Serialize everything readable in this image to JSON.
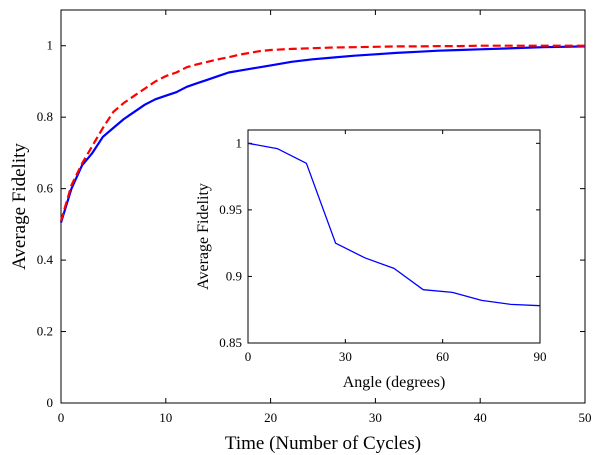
{
  "chart_data": [
    {
      "type": "line",
      "xlabel": "Time (Number of Cycles)",
      "ylabel": "Average Fidelity",
      "xlim": [
        0,
        50
      ],
      "ylim": [
        0,
        1.1
      ],
      "xticks": [
        0,
        10,
        20,
        30,
        40,
        50
      ],
      "yticks": [
        0,
        0.2,
        0.4,
        0.6,
        0.8,
        1
      ],
      "xtick_labels": [
        "0",
        "10",
        "20",
        "30",
        "40",
        "50"
      ],
      "ytick_labels": [
        "0",
        "0.2",
        "0.4",
        "0.6",
        "0.8",
        "1"
      ],
      "grid": false,
      "legend": false,
      "series": [
        {
          "style": "solid",
          "color": "#0000ff",
          "x": [
            0,
            1,
            2,
            3,
            4,
            5,
            6,
            7,
            8,
            9,
            10,
            11,
            12,
            13,
            14,
            15,
            16,
            17,
            18,
            19,
            20,
            22,
            24,
            26,
            28,
            30,
            32,
            34,
            36,
            38,
            40,
            42,
            44,
            46,
            48,
            50
          ],
          "y": [
            0.505,
            0.6,
            0.665,
            0.7,
            0.745,
            0.77,
            0.795,
            0.815,
            0.835,
            0.85,
            0.86,
            0.87,
            0.885,
            0.895,
            0.905,
            0.915,
            0.925,
            0.93,
            0.935,
            0.94,
            0.945,
            0.955,
            0.962,
            0.967,
            0.972,
            0.976,
            0.98,
            0.983,
            0.986,
            0.988,
            0.99,
            0.992,
            0.994,
            0.996,
            0.997,
            0.998
          ]
        },
        {
          "style": "dashed",
          "color": "#ff0000",
          "x": [
            0,
            1,
            2,
            3,
            4,
            5,
            6,
            7,
            8,
            9,
            10,
            11,
            12,
            13,
            14,
            15,
            16,
            17,
            18,
            19,
            20,
            22,
            24,
            26,
            28,
            30,
            32,
            34,
            36,
            38,
            40,
            42,
            44,
            46,
            48,
            50
          ],
          "y": [
            0.51,
            0.61,
            0.67,
            0.72,
            0.77,
            0.815,
            0.84,
            0.86,
            0.88,
            0.9,
            0.915,
            0.925,
            0.94,
            0.948,
            0.955,
            0.962,
            0.968,
            0.975,
            0.98,
            0.985,
            0.988,
            0.991,
            0.993,
            0.995,
            0.996,
            0.997,
            0.998,
            0.998,
            0.999,
            0.999,
            1.0,
            1.0,
            1.0,
            1.0,
            1.0,
            1.0
          ]
        }
      ]
    },
    {
      "type": "line",
      "xlabel": "Angle (degrees)",
      "ylabel": "Average Fidelity",
      "xlim": [
        0,
        90
      ],
      "ylim": [
        0.85,
        1.01
      ],
      "xticks": [
        0,
        30,
        60,
        90
      ],
      "yticks": [
        0.85,
        0.9,
        0.95,
        1
      ],
      "xtick_labels": [
        "0",
        "30",
        "60",
        "90"
      ],
      "ytick_labels": [
        "0.85",
        "0.9",
        "0.95",
        "1"
      ],
      "grid": false,
      "legend": false,
      "series": [
        {
          "style": "solid",
          "color": "#0000ff",
          "x": [
            0,
            9,
            18,
            27,
            36,
            45,
            54,
            63,
            72,
            81,
            90
          ],
          "y": [
            1.0,
            0.996,
            0.985,
            0.925,
            0.914,
            0.906,
            0.89,
            0.888,
            0.882,
            0.879,
            0.878
          ]
        }
      ]
    }
  ]
}
